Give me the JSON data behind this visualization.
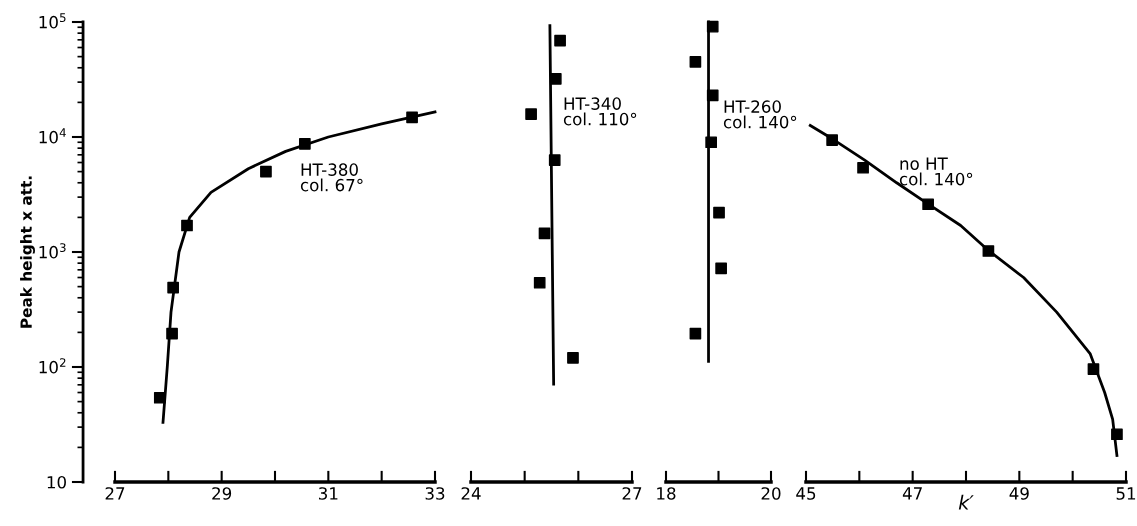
{
  "chart_data": [
    {
      "type": "scatter",
      "ylabel": "Peak height x att.",
      "log": true,
      "ylim": [
        10,
        100000
      ],
      "yticks": [
        10,
        {
          "value": 100,
          "label": "10$^{2}$"
        },
        {
          "value": 1000,
          "label": "10$^{3}$"
        },
        {
          "value": 10000,
          "label": "10$^{4}$"
        },
        {
          "value": 100000,
          "label": "10$^{5}$"
        }
      ],
      "xlim": [
        27,
        33
      ],
      "xticks": [
        27,
        {
          "value": 28,
          "label": null
        },
        29,
        {
          "value": 30,
          "label": null
        },
        31,
        {
          "value": 32,
          "label": null
        },
        33
      ],
      "grid": false,
      "series": [
        {
          "marker": "square",
          "color": "#000000",
          "x": [
            27.84,
            28.07,
            28.09,
            28.35,
            29.83,
            30.56,
            32.57
          ],
          "values": [
            54,
            195,
            490,
            1700,
            5000,
            8700,
            14800
          ]
        },
        {
          "type": "line",
          "marker": "none",
          "line_style": "solid",
          "color": "#000000",
          "x": [
            27.9,
            27.98,
            28.05,
            28.2,
            28.4,
            28.8,
            29.5,
            30.2,
            31,
            32,
            33
          ],
          "values": [
            33,
            100,
            300,
            1000,
            2000,
            3300,
            5300,
            7500,
            10000,
            13000,
            16500
          ]
        }
      ],
      "annotations": [
        "HT-380\ncol. 67°"
      ]
    },
    {
      "type": "scatter",
      "log": true,
      "ylim": [
        10,
        100000
      ],
      "tick_labels": "x",
      "xlim": [
        24,
        27
      ],
      "xticks": [
        24,
        {
          "value": 25,
          "label": null
        },
        {
          "value": 26,
          "label": null
        },
        27
      ],
      "grid": false,
      "series": [
        {
          "marker": "square",
          "color": "#000000",
          "x": [
            25.66,
            25.58,
            25.12,
            25.56,
            25.37,
            25.28,
            25.9
          ],
          "values": [
            69000,
            32000,
            15800,
            6300,
            1450,
            540,
            120
          ]
        },
        {
          "type": "line",
          "marker": "none",
          "line_style": "solid",
          "color": "#000000",
          "x": [
            25.47,
            25.54
          ],
          "values": [
            93000,
            71
          ]
        }
      ],
      "annotations": [
        "HT-340\ncol. 110°"
      ]
    },
    {
      "type": "scatter",
      "log": true,
      "ylim": [
        10,
        100000
      ],
      "tick_labels": "x",
      "xlim": [
        18,
        20
      ],
      "xticks": [
        18,
        {
          "value": 19,
          "label": null
        },
        20
      ],
      "grid": false,
      "series": [
        {
          "marker": "square",
          "color": "#000000",
          "x": [
            18.89,
            18.56,
            18.89,
            18.86,
            19.01,
            19.05,
            18.56
          ],
          "values": [
            91000,
            45000,
            23000,
            9000,
            2200,
            720,
            195
          ]
        },
        {
          "type": "line",
          "marker": "none",
          "line_style": "solid",
          "color": "#000000",
          "x": [
            18.81,
            18.81
          ],
          "values": [
            100000,
            112
          ]
        }
      ],
      "annotations": [
        "HT-260\ncol. 140°"
      ]
    },
    {
      "type": "scatter",
      "xlabel": "k′",
      "log": true,
      "ylim": [
        10,
        100000
      ],
      "tick_labels": "x",
      "xlim": [
        45,
        51
      ],
      "xticks": [
        45,
        {
          "value": 46,
          "label": null
        },
        47,
        {
          "value": 48,
          "label": null
        },
        49,
        {
          "value": 50,
          "label": null
        },
        51
      ],
      "grid": false,
      "series": [
        {
          "marker": "square",
          "color": "#000000",
          "x": [
            45.49,
            46.07,
            47.29,
            48.42,
            50.39,
            50.83
          ],
          "values": [
            9400,
            5400,
            2600,
            1020,
            96,
            26
          ]
        },
        {
          "type": "line",
          "marker": "none",
          "line_style": "solid",
          "color": "#000000",
          "x": [
            45.08,
            45.5,
            46.1,
            46.7,
            47.3,
            47.9,
            48.4,
            49.08,
            49.7,
            50.33,
            50.6,
            50.75,
            50.83
          ],
          "values": [
            12600,
            9600,
            6300,
            4000,
            2600,
            1700,
            1050,
            600,
            300,
            130,
            60,
            35,
            17
          ]
        }
      ],
      "annotations": [
        "no HT\ncol. 140°"
      ]
    }
  ]
}
